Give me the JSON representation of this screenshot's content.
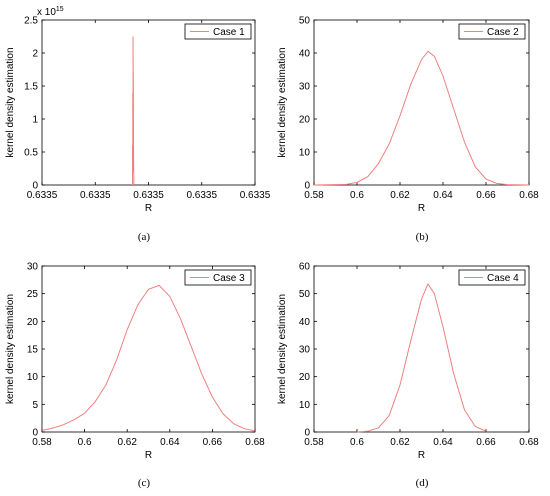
{
  "chart_data": [
    {
      "type": "line",
      "caption": "(a)",
      "xlabel": "R",
      "ylabel": "kernel density estimation",
      "xlim": [
        0,
        4
      ],
      "ylim": [
        0,
        2.5
      ],
      "x_ticks": [
        {
          "v": 0,
          "label": "0.6335"
        },
        {
          "v": 1,
          "label": "0.6335"
        },
        {
          "v": 2,
          "label": "0.6335"
        },
        {
          "v": 3,
          "label": "0.6335"
        },
        {
          "v": 4,
          "label": "0.6335"
        }
      ],
      "y_ticks": [
        {
          "v": 0,
          "label": "0"
        },
        {
          "v": 0.5,
          "label": "0.5"
        },
        {
          "v": 1,
          "label": "1"
        },
        {
          "v": 1.5,
          "label": "1.5"
        },
        {
          "v": 2,
          "label": "2"
        },
        {
          "v": 2.5,
          "label": "2.5"
        }
      ],
      "y_multiplier_base": "x 10",
      "y_multiplier_exp": "15",
      "legend": "Case 1",
      "legend_position": "top-right",
      "grid": false,
      "line_color": "#f08080",
      "series": [
        {
          "name": "Case 1",
          "x": [
            1.7,
            1.7,
            1.705,
            1.705,
            1.71,
            1.71,
            1.715,
            1.715,
            1.72,
            1.72,
            1.725
          ],
          "y": [
            0.0,
            0.6,
            0.2,
            1.4,
            0.5,
            2.25,
            0.8,
            1.7,
            0.3,
            0.4,
            0.0
          ]
        }
      ]
    },
    {
      "type": "line",
      "caption": "(b)",
      "xlabel": "R",
      "ylabel": "kernel density estimation",
      "xlim": [
        0.58,
        0.68
      ],
      "ylim": [
        0,
        50
      ],
      "x_ticks": [
        {
          "v": 0.58,
          "label": "0.58"
        },
        {
          "v": 0.6,
          "label": "0.6"
        },
        {
          "v": 0.62,
          "label": "0.62"
        },
        {
          "v": 0.64,
          "label": "0.64"
        },
        {
          "v": 0.66,
          "label": "0.66"
        },
        {
          "v": 0.68,
          "label": "0.68"
        }
      ],
      "y_ticks": [
        {
          "v": 0,
          "label": "0"
        },
        {
          "v": 10,
          "label": "10"
        },
        {
          "v": 20,
          "label": "20"
        },
        {
          "v": 30,
          "label": "30"
        },
        {
          "v": 40,
          "label": "40"
        },
        {
          "v": 50,
          "label": "50"
        }
      ],
      "legend": "Case 2",
      "legend_position": "top-right",
      "grid": false,
      "line_color": "#f08080",
      "series": [
        {
          "name": "Case 2",
          "x": [
            0.58,
            0.595,
            0.6,
            0.605,
            0.61,
            0.615,
            0.62,
            0.625,
            0.63,
            0.633,
            0.636,
            0.64,
            0.645,
            0.65,
            0.655,
            0.66,
            0.665,
            0.67,
            0.68
          ],
          "y": [
            0.0,
            0.2,
            0.8,
            2.5,
            6.5,
            12.5,
            21.0,
            30.5,
            38.0,
            40.5,
            39.0,
            33.0,
            23.0,
            13.0,
            5.5,
            1.8,
            0.5,
            0.1,
            0.0
          ]
        }
      ]
    },
    {
      "type": "line",
      "caption": "(c)",
      "xlabel": "R",
      "ylabel": "kernel density estimation",
      "xlim": [
        0.58,
        0.68
      ],
      "ylim": [
        0,
        30
      ],
      "x_ticks": [
        {
          "v": 0.58,
          "label": "0.58"
        },
        {
          "v": 0.6,
          "label": "0.6"
        },
        {
          "v": 0.62,
          "label": "0.62"
        },
        {
          "v": 0.64,
          "label": "0.64"
        },
        {
          "v": 0.66,
          "label": "0.66"
        },
        {
          "v": 0.68,
          "label": "0.68"
        }
      ],
      "y_ticks": [
        {
          "v": 0,
          "label": "0"
        },
        {
          "v": 5,
          "label": "5"
        },
        {
          "v": 10,
          "label": "10"
        },
        {
          "v": 15,
          "label": "15"
        },
        {
          "v": 20,
          "label": "20"
        },
        {
          "v": 25,
          "label": "25"
        },
        {
          "v": 30,
          "label": "30"
        }
      ],
      "legend": "Case 3",
      "legend_position": "top-right",
      "grid": false,
      "line_color": "#f08080",
      "series": [
        {
          "name": "Case 3",
          "x": [
            0.58,
            0.585,
            0.59,
            0.595,
            0.6,
            0.605,
            0.61,
            0.615,
            0.62,
            0.625,
            0.63,
            0.635,
            0.64,
            0.645,
            0.65,
            0.655,
            0.66,
            0.665,
            0.67,
            0.675,
            0.68
          ],
          "y": [
            0.3,
            0.7,
            1.3,
            2.2,
            3.4,
            5.5,
            8.5,
            13.0,
            18.5,
            23.0,
            25.8,
            26.5,
            24.5,
            20.5,
            15.5,
            10.5,
            6.3,
            3.3,
            1.5,
            0.6,
            0.2
          ]
        }
      ]
    },
    {
      "type": "line",
      "caption": "(d)",
      "xlabel": "R",
      "ylabel": "kernel density estimation",
      "xlim": [
        0.58,
        0.68
      ],
      "ylim": [
        0,
        60
      ],
      "x_ticks": [
        {
          "v": 0.58,
          "label": "0.58"
        },
        {
          "v": 0.6,
          "label": "0.6"
        },
        {
          "v": 0.62,
          "label": "0.62"
        },
        {
          "v": 0.64,
          "label": "0.64"
        },
        {
          "v": 0.66,
          "label": "0.66"
        },
        {
          "v": 0.68,
          "label": "0.68"
        }
      ],
      "y_ticks": [
        {
          "v": 0,
          "label": "0"
        },
        {
          "v": 10,
          "label": "10"
        },
        {
          "v": 20,
          "label": "20"
        },
        {
          "v": 30,
          "label": "30"
        },
        {
          "v": 40,
          "label": "40"
        },
        {
          "v": 50,
          "label": "50"
        },
        {
          "v": 60,
          "label": "60"
        }
      ],
      "legend": "Case 4",
      "legend_position": "top-right",
      "grid": false,
      "line_color": "#f08080",
      "series": [
        {
          "name": "Case 4",
          "x": [
            0.6,
            0.605,
            0.61,
            0.615,
            0.62,
            0.625,
            0.63,
            0.633,
            0.636,
            0.64,
            0.645,
            0.65,
            0.655,
            0.66
          ],
          "y": [
            0.0,
            0.3,
            1.5,
            6.0,
            17.0,
            33.0,
            48.0,
            53.5,
            50.0,
            38.0,
            21.0,
            8.0,
            2.0,
            0.3
          ]
        }
      ]
    }
  ]
}
